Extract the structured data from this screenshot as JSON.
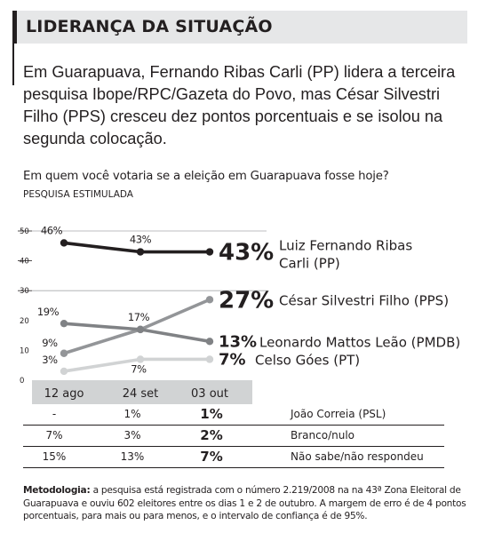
{
  "header": {
    "title": "LIDERANÇA DA SITUAÇÃO"
  },
  "lead": "Em Guarapuava, Fernando Ribas Carli (PP) lidera a terceira pesquisa Ibope/RPC/Gazeta do Povo, mas César Silvestri Filho (PPS) cresceu dez pontos porcentuais e se isolou na segunda colocação.",
  "question": "Em quem você votaria se a eleição em Guarapuava fosse hoje?",
  "subtitle": "PESQUISA ESTIMULADA",
  "chart_data": {
    "type": "line",
    "x": [
      "12 ago",
      "24 set",
      "03 out"
    ],
    "y_ticks": [
      "50",
      "40",
      "30",
      "20",
      "10",
      "0"
    ],
    "series": [
      {
        "name": "Luiz Fernando Ribas Carli (PP)",
        "name_lines": [
          "Luiz Fernando Ribas",
          "Carli (PP)"
        ],
        "values": [
          46,
          43,
          43
        ],
        "point_labels": [
          "46%",
          "43%",
          ""
        ],
        "last_label": "43%",
        "color": "#231f20"
      },
      {
        "name": "César Silvestri Filho (PPS)",
        "name_lines": [
          "César Silvestri Filho (PPS)"
        ],
        "values": [
          9,
          17,
          27
        ],
        "point_labels": [
          "9%",
          "17%",
          ""
        ],
        "last_label": "27%",
        "color": "#939598"
      },
      {
        "name": "Leonardo Mattos Leão (PMDB)",
        "name_lines": [
          "Leonardo Mattos Leão (PMDB)"
        ],
        "values": [
          19,
          17,
          13
        ],
        "point_labels": [
          "19%",
          "",
          ""
        ],
        "last_label": "13%",
        "color": "#808285"
      },
      {
        "name": "Celso Góes (PT)",
        "name_lines": [
          "Celso Góes (PT)"
        ],
        "values": [
          3,
          7,
          7
        ],
        "point_labels": [
          "3%",
          "7%",
          ""
        ],
        "last_label": "7%",
        "color": "#d1d3d4"
      }
    ]
  },
  "table": {
    "rows": [
      {
        "v1": "-",
        "v2": "1%",
        "v3": "1%",
        "label": "João Correia (PSL)"
      },
      {
        "v1": "7%",
        "v2": "3%",
        "v3": "2%",
        "label": "Branco/nulo"
      },
      {
        "v1": "15%",
        "v2": "13%",
        "v3": "7%",
        "label": "Não sabe/não respondeu"
      }
    ]
  },
  "method": {
    "label": "Metodologia:",
    "text": " a pesquisa está registrada com o número 2.219/2008 na na 43ª Zona Eleitoral de Guarapuava e ouviu 602 eleitores entre os dias 1 e 2 de outubro. A margem de erro é de 4 pontos porcentuais, para mais ou para menos, e o intervalo de confiança é de 95%."
  }
}
